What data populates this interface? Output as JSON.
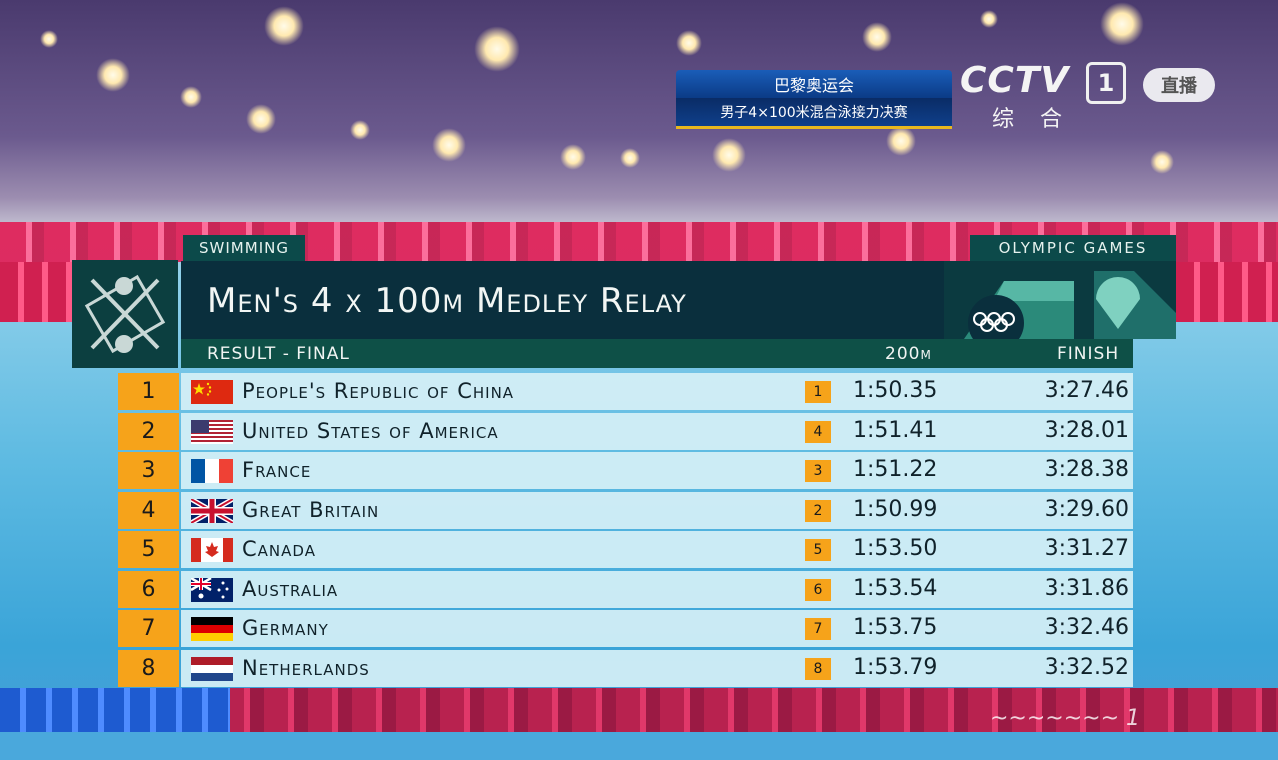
{
  "broadcast": {
    "event_title": "巴黎奥运会",
    "event_subtitle": "男子4×100米混合泳接力决赛",
    "channel_logo": "CCTV",
    "channel_number": "1",
    "channel_name": "综合",
    "live_label": "直播"
  },
  "board": {
    "sport_tag": "SWIMMING",
    "games_tag": "OLYMPIC GAMES",
    "title": "Men's 4 x 100m Medley Relay",
    "subtitle": "RESULT - FINAL",
    "split_header": "200m",
    "finish_header": "FINISH",
    "accent_color": "#f6a31a",
    "rows": [
      {
        "rank": "1",
        "flag": "china",
        "country": "People's Republic of China",
        "split_pos": "1",
        "split": "1:50.35",
        "finish": "3:27.46"
      },
      {
        "rank": "2",
        "flag": "usa",
        "country": "United States of America",
        "split_pos": "4",
        "split": "1:51.41",
        "finish": "3:28.01"
      },
      {
        "rank": "3",
        "flag": "france",
        "country": "France",
        "split_pos": "3",
        "split": "1:51.22",
        "finish": "3:28.38"
      },
      {
        "rank": "4",
        "flag": "gb",
        "country": "Great Britain",
        "split_pos": "2",
        "split": "1:50.99",
        "finish": "3:29.60"
      },
      {
        "rank": "5",
        "flag": "canada",
        "country": "Canada",
        "split_pos": "5",
        "split": "1:53.50",
        "finish": "3:31.27"
      },
      {
        "rank": "6",
        "flag": "australia",
        "country": "Australia",
        "split_pos": "6",
        "split": "1:53.54",
        "finish": "3:31.86"
      },
      {
        "rank": "7",
        "flag": "germany",
        "country": "Germany",
        "split_pos": "7",
        "split": "1:53.75",
        "finish": "3:32.46"
      },
      {
        "rank": "8",
        "flag": "netherlands",
        "country": "Netherlands",
        "split_pos": "8",
        "split": "1:53.79",
        "finish": "3:32.52"
      }
    ]
  }
}
